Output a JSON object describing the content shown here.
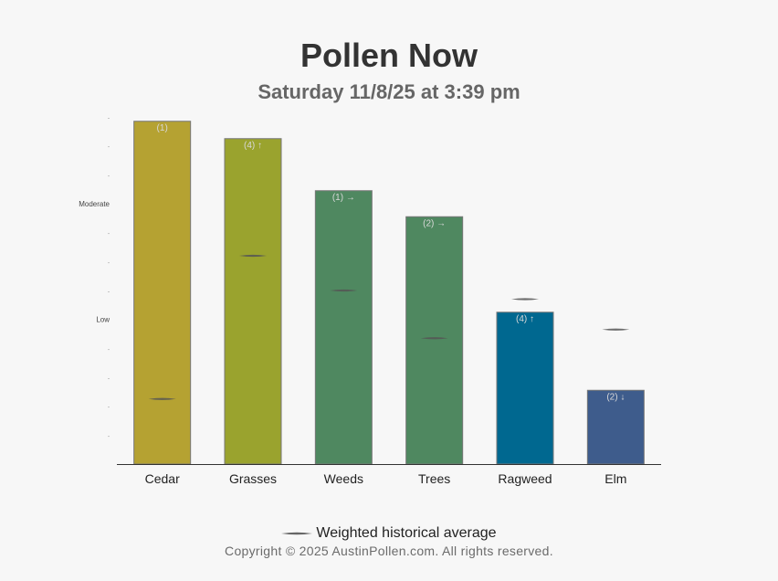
{
  "header": {
    "title": "Pollen Now",
    "subtitle": "Saturday 11/8/25 at 3:39 pm"
  },
  "chart_data": {
    "type": "bar",
    "title": "Pollen Now",
    "subtitle": "Saturday 11/8/25 at 3:39 pm",
    "categories": [
      "Cedar",
      "Grasses",
      "Weeds",
      "Trees",
      "Ragweed",
      "Elm"
    ],
    "values": [
      7.9,
      7.5,
      6.3,
      5.7,
      3.5,
      1.7
    ],
    "bar_labels": [
      "(1)",
      "(4) ↑",
      "(1) →",
      "(2) →",
      "(4) ↑",
      "(2) ↓"
    ],
    "bar_colors": [
      "#b5a232",
      "#9aa32e",
      "#4f8860",
      "#4f8860",
      "#006890",
      "#3e5c8c"
    ],
    "historical_average": [
      1.5,
      4.8,
      4.0,
      2.9,
      3.8,
      3.1
    ],
    "y_tick_labels": [
      "",
      "",
      "",
      "",
      "Low",
      "",
      "",
      "",
      "Moderate",
      "",
      "",
      ""
    ],
    "ylim": [
      0,
      8
    ],
    "grid": false,
    "legend": {
      "position": "bottom",
      "label": "Weighted historical average"
    }
  },
  "footer": {
    "copyright": "Copyright © 2025 AustinPollen.com.  All rights reserved."
  }
}
